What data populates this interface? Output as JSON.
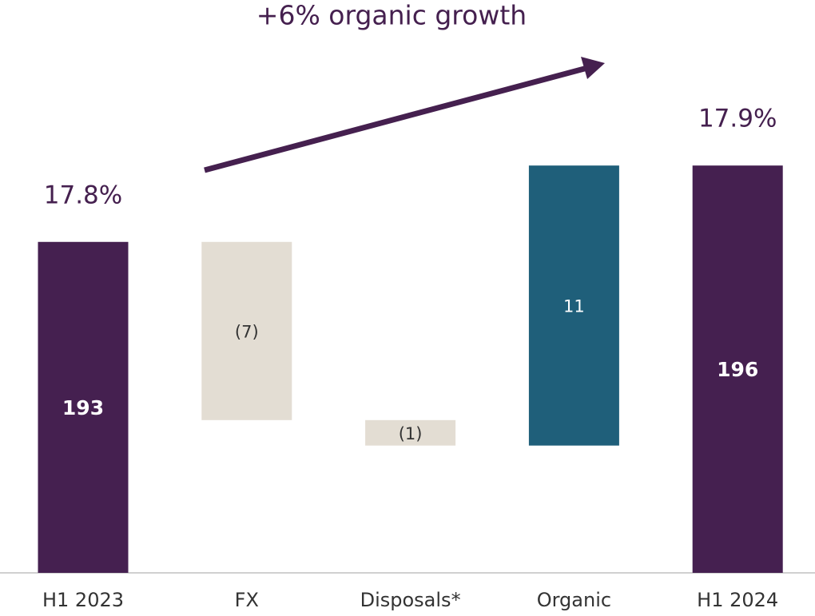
{
  "chart_data": {
    "type": "waterfall",
    "title": "+6% organic growth",
    "categories": [
      "H1 2023",
      "FX",
      "Disposals*",
      "Organic",
      "H1 2024"
    ],
    "values": [
      193,
      -7,
      -1,
      11,
      196
    ],
    "value_labels": [
      "193",
      "(7)",
      "(1)",
      "11",
      "196"
    ],
    "measure": [
      "absolute",
      "relative",
      "relative",
      "relative",
      "total"
    ],
    "colors": [
      "#452050",
      "#e3ddd3",
      "#e3ddd3",
      "#1f5f7a",
      "#452050"
    ],
    "bar_annotations": [
      "17.8%",
      null,
      null,
      null,
      "17.9%"
    ],
    "ylim": [
      180,
      202
    ]
  }
}
